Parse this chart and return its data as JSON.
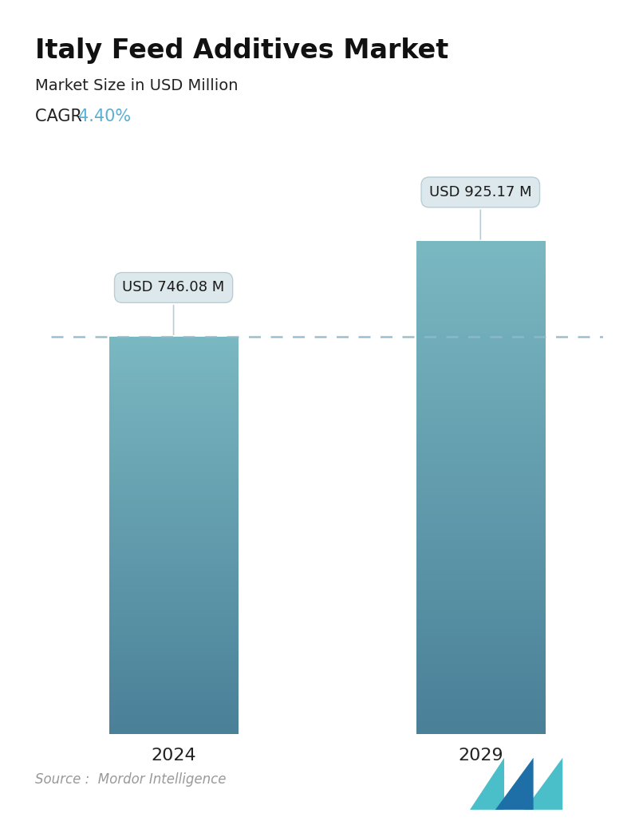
{
  "title": "Italy Feed Additives Market",
  "subtitle": "Market Size in USD Million",
  "cagr_label": "CAGR ",
  "cagr_value": "4.40%",
  "cagr_color": "#5aafd4",
  "categories": [
    "2024",
    "2029"
  ],
  "values": [
    746.08,
    925.17
  ],
  "bar_labels": [
    "USD 746.08 M",
    "USD 925.17 M"
  ],
  "bar_color_top": "#7ab8c2",
  "bar_color_bottom": "#4a8098",
  "dashed_line_color": "#90b8cc",
  "dashed_line_y": 746.08,
  "background_color": "#ffffff",
  "source_text": "Source :  Mordor Intelligence",
  "title_fontsize": 24,
  "subtitle_fontsize": 14,
  "cagr_fontsize": 15,
  "tick_fontsize": 16,
  "label_fontsize": 13,
  "source_fontsize": 12,
  "ylim": [
    0,
    1100
  ],
  "bar_width": 0.42,
  "bar_positions": [
    0,
    1
  ],
  "xlim": [
    -0.4,
    1.4
  ],
  "tooltip_bg": "#dde8ed",
  "tooltip_edge": "#b8cdd6",
  "tooltip_text_color": "#1a1a1a",
  "logo_tri1_color": "#4bbfc9",
  "logo_tri2_color": "#1e6fa8",
  "logo_tri3_color": "#4bbfc9"
}
